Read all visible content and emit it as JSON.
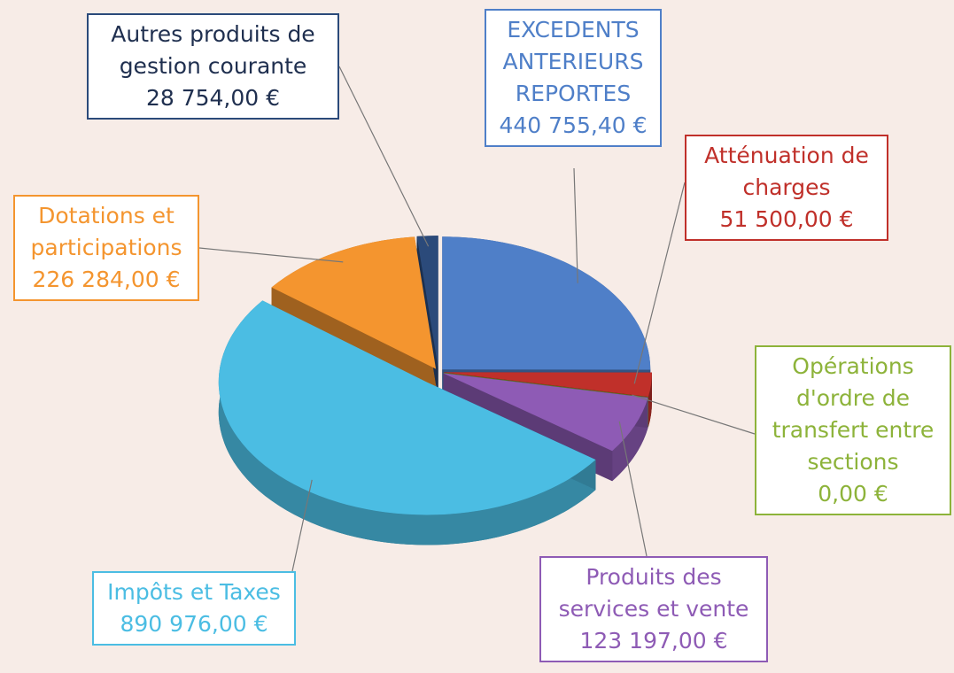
{
  "chart_data": {
    "type": "pie",
    "categories": [
      "EXCEDENTS ANTERIEURS REPORTES",
      "Atténuation de charges",
      "Opérations d'ordre de transfert entre sections",
      "Produits des services et vente",
      "Impôts et Taxes",
      "Dotations et participations",
      "Autres produits de gestion courante"
    ],
    "values": [
      440755.4,
      51500,
      0,
      123197,
      890976,
      226284,
      28754
    ],
    "value_labels": [
      "440 755,40 €",
      "51 500,00 €",
      "0,00 €",
      "123 197,00 €",
      "890 976,00 €",
      "226 284,00 €",
      "28 754,00 €"
    ],
    "colors": [
      "#4f7fc8",
      "#c0302a",
      "#8db33a",
      "#8e5bb5",
      "#4bbde3",
      "#f4952f",
      "#2b4a7a"
    ]
  }
}
